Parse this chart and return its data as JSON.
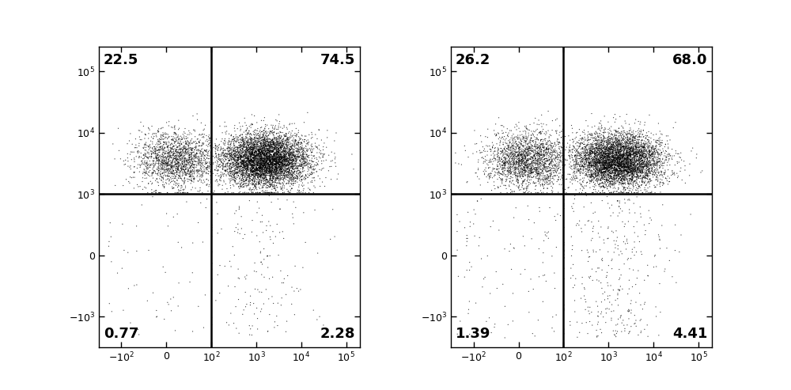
{
  "panels": [
    {
      "seed": 42,
      "labels": {
        "UL": "22.5",
        "UR": "74.5",
        "LL": "0.77",
        "LR": "2.28"
      }
    },
    {
      "seed": 17,
      "labels": {
        "UL": "26.2",
        "UR": "68.0",
        "LL": "1.39",
        "LR": "4.41"
      }
    }
  ],
  "x_ticks_pos": [
    -2.0,
    -1.0,
    0.0,
    1.0,
    2.0,
    3.0
  ],
  "x_ticks_lab": [
    "$-10^2$",
    "0",
    "$10^2$",
    "$10^3$",
    "$10^4$",
    "$10^5$"
  ],
  "y_ticks_pos": [
    3.0,
    2.0,
    1.0,
    0.0,
    -1.0
  ],
  "y_ticks_lab": [
    "$10^5$",
    "$10^4$",
    "$10^3$",
    "0",
    "$-10^3$"
  ],
  "x_gate": 0.0,
  "y_gate": 1.0,
  "xlim": [
    -2.5,
    3.3
  ],
  "ylim": [
    -1.5,
    3.4
  ],
  "label_fontsize": 13,
  "tick_fontsize": 9,
  "gate_lw": 1.8,
  "N_total": 8000,
  "background": "#ffffff"
}
